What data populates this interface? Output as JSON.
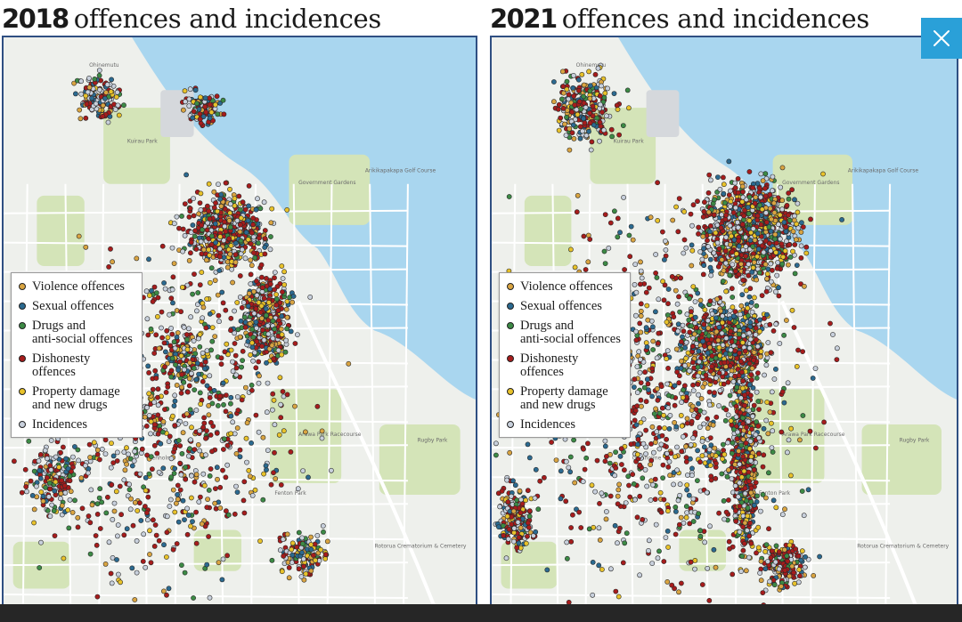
{
  "colors": {
    "violence": "#d9a441",
    "sexual": "#2b6a90",
    "drugs": "#3c8a45",
    "dishonesty": "#a61c1c",
    "property": "#e8c22a",
    "incidences": "#c8d0dc",
    "water": "#a9d6ef",
    "park": "#d4e4b8",
    "land": "#eef0ec",
    "border": "#2f4f82",
    "close_button": "#2aa0d8"
  },
  "panels": [
    {
      "year": "2018",
      "title_rest": "offences and incidences",
      "legend": [
        {
          "label": "Violence offences",
          "color": "#d9a441"
        },
        {
          "label": "Sexual offences",
          "color": "#2b6a90"
        },
        {
          "label": "Drugs and\nanti-social offences",
          "color": "#3c8a45"
        },
        {
          "label": "Dishonesty offences",
          "color": "#a61c1c"
        },
        {
          "label": "Property damage\nand new drugs",
          "color": "#e8c22a"
        },
        {
          "label": "Incidences",
          "color": "#c8d0dc"
        }
      ],
      "places": [
        "Ohinemutu",
        "Kuirau Park",
        "Government Gardens",
        "Arikikapakapa Golf Course",
        "Glenholme",
        "Fenton Park",
        "Arawa Park Racecourse",
        "Rotorua Crematorium & Cemetery",
        "Rugby Park"
      ]
    },
    {
      "year": "2021",
      "title_rest": "offences and incidences",
      "legend": [
        {
          "label": "Violence offences",
          "color": "#d9a441"
        },
        {
          "label": "Sexual offences",
          "color": "#2b6a90"
        },
        {
          "label": "Drugs and\nanti-social offences",
          "color": "#3c8a45"
        },
        {
          "label": "Dishonesty offences",
          "color": "#a61c1c"
        },
        {
          "label": "Property damage\nand new drugs",
          "color": "#e8c22a"
        },
        {
          "label": "Incidences",
          "color": "#c8d0dc"
        }
      ],
      "places": [
        "Ohinemutu",
        "Kuirau Park",
        "Government Gardens",
        "Arikikapakapa Golf Course",
        "Glenholme",
        "Fenton Park",
        "Arawa Park Racecourse",
        "Rotorua Crematorium & Cemetery",
        "Rugby Park"
      ]
    }
  ],
  "close_icon": "close-icon"
}
